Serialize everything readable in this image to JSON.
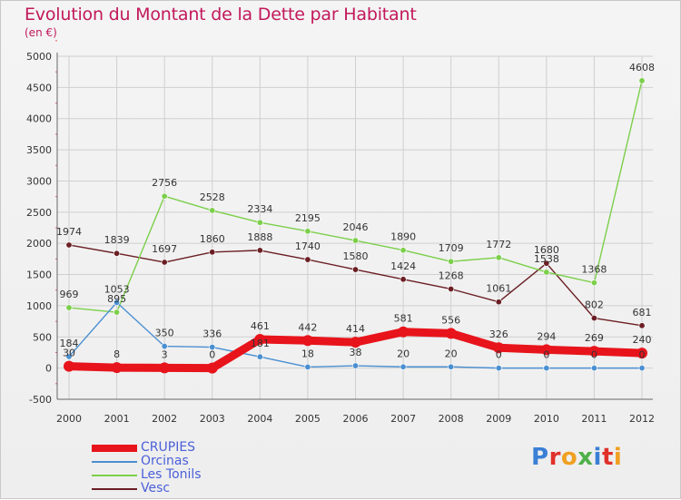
{
  "header": {
    "title": "Evolution du Montant de la Dette par Habitant",
    "unit_label": "(en €)"
  },
  "logo": {
    "text": "Proxiti"
  },
  "colors": {
    "title": "#c2185b",
    "legend_text": "#4a5fd9",
    "grid": "#cfcfcf",
    "axis": "#666666"
  },
  "chart_data": {
    "type": "line",
    "title": "Evolution du Montant de la Dette par Habitant",
    "subtitle": "(en €)",
    "xlabel": "",
    "ylabel": "",
    "ylim": [
      -500,
      5000
    ],
    "yticks": [
      -500,
      0,
      500,
      1000,
      1500,
      2000,
      2500,
      3000,
      3500,
      4000,
      4500,
      5000
    ],
    "x": [
      "2000",
      "2001",
      "2002",
      "2003",
      "2004",
      "2005",
      "2006",
      "2007",
      "2008",
      "2009",
      "2010",
      "2011",
      "2012"
    ],
    "grid": true,
    "legend_position": "bottom-left",
    "series": [
      {
        "name": "Vesc",
        "color": "#6b1f24",
        "values": [
          1974,
          1839,
          1697,
          1860,
          1888,
          1740,
          1580,
          1424,
          1268,
          1061,
          1680,
          802,
          681
        ]
      },
      {
        "name": "Les Tonils",
        "color": "#7ccf4a",
        "values": [
          969,
          895,
          2756,
          2528,
          2334,
          2195,
          2046,
          1890,
          1709,
          1772,
          1538,
          1368,
          4608
        ]
      },
      {
        "name": "Orcinas",
        "color": "#4a8fd1",
        "values": [
          184,
          1053,
          350,
          336,
          181,
          18,
          38,
          20,
          20,
          0,
          0,
          0,
          0
        ]
      },
      {
        "name": "CRUPIES",
        "color": "#e8141b",
        "values": [
          30,
          8,
          3,
          0,
          461,
          442,
          414,
          581,
          556,
          326,
          294,
          269,
          240
        ]
      }
    ],
    "legend": [
      "CRUPIES",
      "Orcinas",
      "Les Tonils",
      "Vesc"
    ]
  }
}
